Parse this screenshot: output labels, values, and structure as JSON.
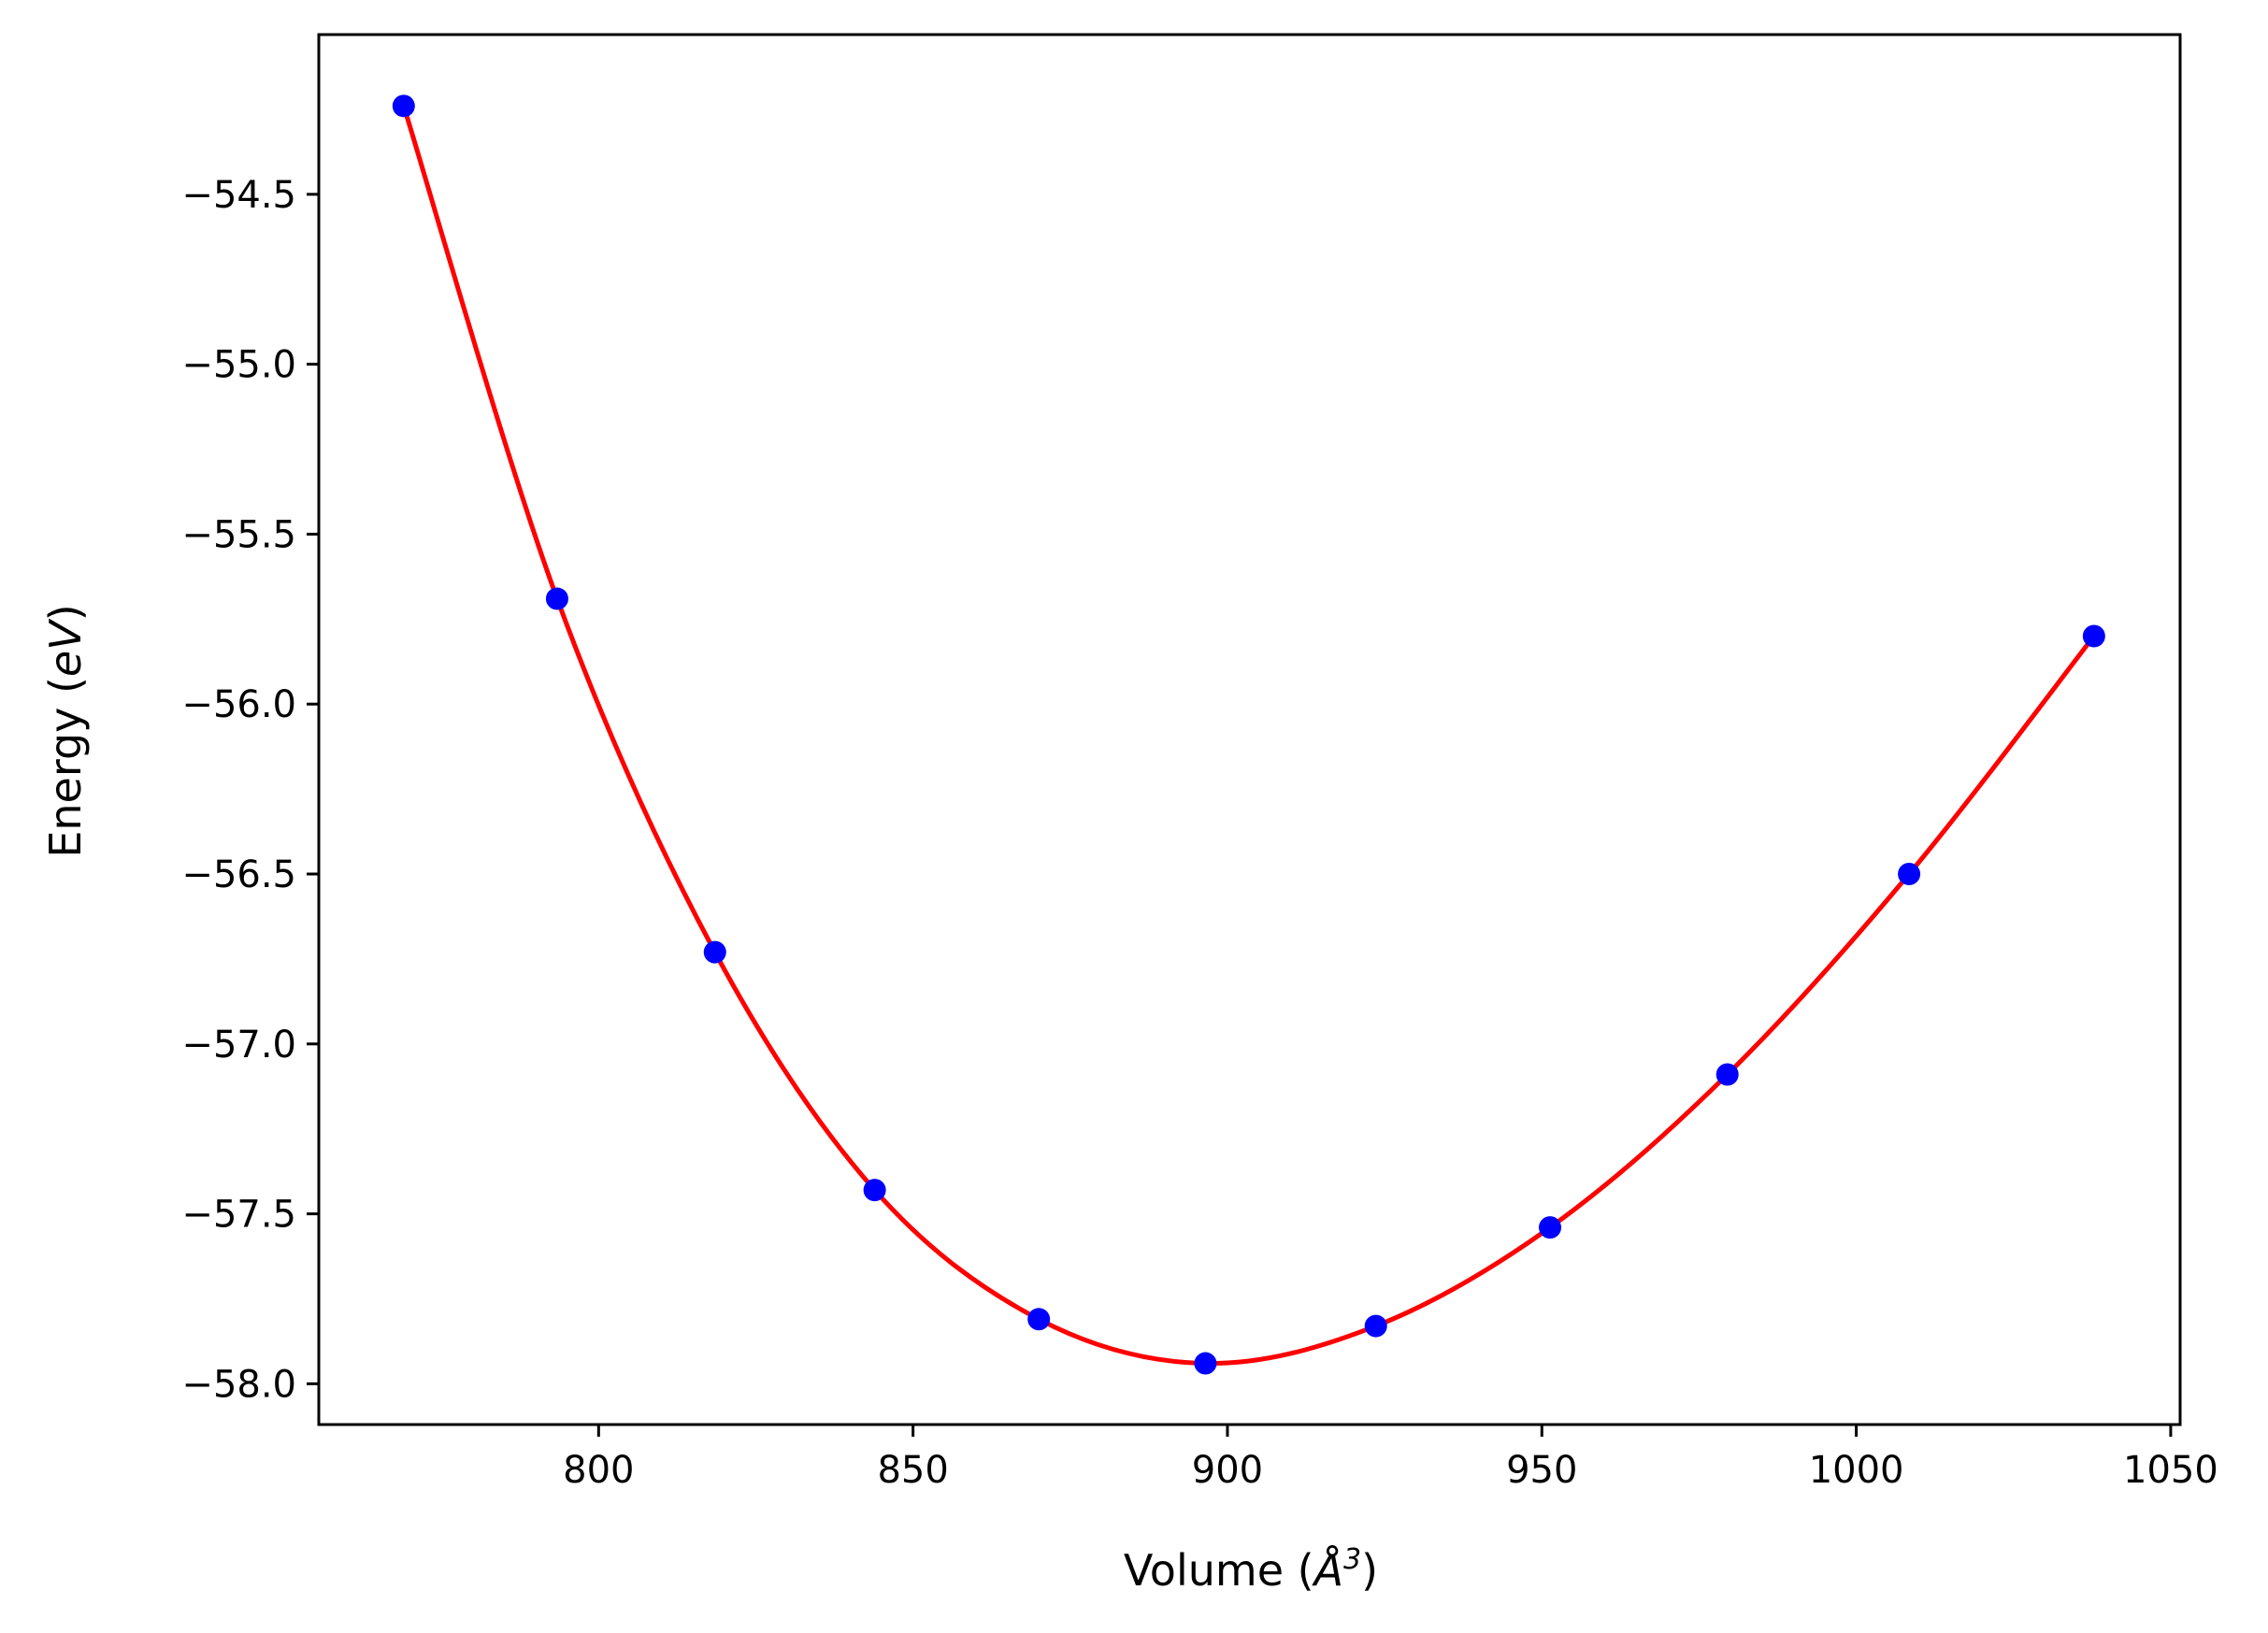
{
  "chart_data": {
    "type": "scatter",
    "xlabel": "Volume",
    "xlabel_unit": "Å",
    "xlabel_unit_exp": "3",
    "ylabel": "Energy",
    "ylabel_unit": "eV",
    "xlim": [
      755.5,
      1051.5
    ],
    "ylim": [
      -58.12,
      -54.03
    ],
    "xticks": [
      800,
      850,
      900,
      950,
      1000,
      1050
    ],
    "xtick_labels": [
      "800",
      "850",
      "900",
      "950",
      "1000",
      "1050"
    ],
    "yticks": [
      -54.5,
      -55.0,
      -55.5,
      -56.0,
      -56.5,
      -57.0,
      -57.5,
      -58.0
    ],
    "ytick_labels": [
      "−54.5",
      "−55.0",
      "−55.5",
      "−56.0",
      "−56.5",
      "−57.0",
      "−57.5",
      "−58.0"
    ],
    "grid": false,
    "series": [
      {
        "kind": "points",
        "color": "#0000ff",
        "x": [
          769.0,
          793.4,
          818.5,
          843.9,
          870.0,
          896.5,
          923.6,
          951.3,
          979.5,
          1008.4,
          1037.8
        ],
        "y": [
          -54.24,
          -55.69,
          -56.73,
          -57.43,
          -57.81,
          -57.94,
          -57.83,
          -57.54,
          -57.09,
          -56.5,
          -55.8
        ]
      },
      {
        "kind": "fit-line",
        "color": "#ff0000",
        "x": [
          769.0,
          793.4,
          818.5,
          843.9,
          870.0,
          896.5,
          923.6,
          951.3,
          979.5,
          1008.4,
          1037.8
        ],
        "y": [
          -54.24,
          -55.69,
          -56.73,
          -57.43,
          -57.81,
          -57.94,
          -57.83,
          -57.54,
          -57.09,
          -56.5,
          -55.8
        ]
      }
    ]
  }
}
